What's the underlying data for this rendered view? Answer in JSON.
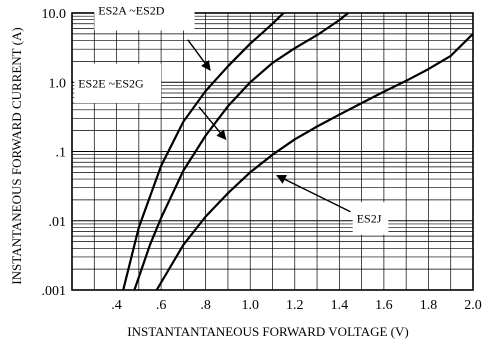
{
  "chart_data": {
    "type": "line",
    "xlabel": "INSTANTANTANEOUS FORWARD VOLTAGE (V)",
    "ylabel": "INSTANTANEOUS FORWARD CURRENT (A)",
    "xlim": [
      0.2,
      2.0
    ],
    "ylim": [
      0.001,
      10.0
    ],
    "yscale": "log",
    "grid": true,
    "x_ticks": [
      ".4",
      ".6",
      ".8",
      "1.0",
      "1.2",
      "1.4",
      "1.6",
      "1.8",
      "2.0"
    ],
    "y_ticks": [
      "10.0",
      "1.0",
      ".1",
      ".01",
      ".001"
    ],
    "series": [
      {
        "name": "ES2A ~ES2D",
        "points": [
          [
            0.43,
            0.001
          ],
          [
            0.5,
            0.008
          ],
          [
            0.6,
            0.062
          ],
          [
            0.7,
            0.27
          ],
          [
            0.8,
            0.75
          ],
          [
            0.9,
            1.7
          ],
          [
            1.0,
            3.6
          ],
          [
            1.1,
            7.0
          ],
          [
            1.15,
            10.0
          ]
        ]
      },
      {
        "name": "ES2E ~ES2G",
        "points": [
          [
            0.48,
            0.001
          ],
          [
            0.55,
            0.0045
          ],
          [
            0.6,
            0.011
          ],
          [
            0.7,
            0.053
          ],
          [
            0.8,
            0.17
          ],
          [
            0.9,
            0.45
          ],
          [
            1.0,
            1.0
          ],
          [
            1.1,
            1.9
          ],
          [
            1.2,
            3.1
          ],
          [
            1.3,
            4.8
          ],
          [
            1.4,
            7.9
          ],
          [
            1.44,
            10.0
          ]
        ]
      },
      {
        "name": "ES2J",
        "points": [
          [
            0.58,
            0.001
          ],
          [
            0.7,
            0.0045
          ],
          [
            0.8,
            0.0115
          ],
          [
            0.9,
            0.025
          ],
          [
            1.0,
            0.05
          ],
          [
            1.1,
            0.09
          ],
          [
            1.2,
            0.15
          ],
          [
            1.3,
            0.23
          ],
          [
            1.4,
            0.34
          ],
          [
            1.5,
            0.5
          ],
          [
            1.6,
            0.73
          ],
          [
            1.7,
            1.05
          ],
          [
            1.8,
            1.55
          ],
          [
            1.9,
            2.4
          ],
          [
            2.0,
            5.0
          ]
        ]
      }
    ],
    "annotations": [
      {
        "text": "ES2A ~ES2D",
        "series": "ES2A ~ES2D",
        "box": [
          0.3,
          0.75,
          5.6,
          21.0
        ],
        "arrow_from": [
          0.72,
          4.1
        ],
        "arrow_to": [
          0.82,
          1.5
        ]
      },
      {
        "text": "ES2E ~ES2G",
        "series": "ES2E ~ES2G",
        "box": [
          0.21,
          0.6,
          0.5,
          1.85
        ],
        "arrow_from": [
          0.77,
          0.44
        ],
        "arrow_to": [
          0.89,
          0.15
        ]
      },
      {
        "text": "ES2J",
        "series": "ES2J",
        "box": [
          1.46,
          1.62,
          0.0063,
          0.0185
        ],
        "arrow_from": [
          1.45,
          0.0135
        ],
        "arrow_to": [
          1.12,
          0.045
        ]
      }
    ]
  }
}
